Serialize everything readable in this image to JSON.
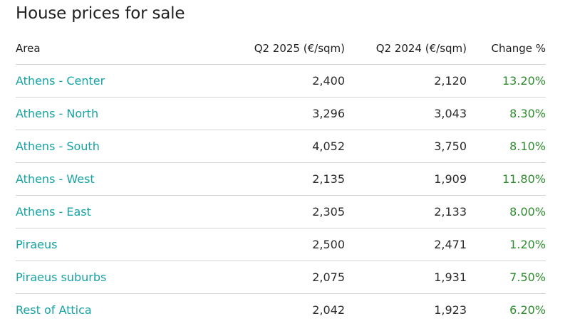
{
  "title": "House prices for sale",
  "columns": {
    "area": "Area",
    "q2_2025": "Q2 2025 (€/sqm)",
    "q2_2024": "Q2 2024 (€/sqm)",
    "change": "Change %"
  },
  "colors": {
    "area_link": "#17a2a3",
    "positive_change": "#2e8b2e",
    "text": "#2a2a2a",
    "divider": "#d4d4d4"
  },
  "rows": [
    {
      "area": "Athens - Center",
      "q2_2025": "2,400",
      "q2_2024": "2,120",
      "change": "13.20%"
    },
    {
      "area": "Athens - North",
      "q2_2025": "3,296",
      "q2_2024": "3,043",
      "change": "8.30%"
    },
    {
      "area": "Athens - South",
      "q2_2025": "4,052",
      "q2_2024": "3,750",
      "change": "8.10%"
    },
    {
      "area": "Athens - West",
      "q2_2025": "2,135",
      "q2_2024": "1,909",
      "change": "11.80%"
    },
    {
      "area": "Athens - East",
      "q2_2025": "2,305",
      "q2_2024": "2,133",
      "change": "8.00%"
    },
    {
      "area": "Piraeus",
      "q2_2025": "2,500",
      "q2_2024": "2,471",
      "change": "1.20%"
    },
    {
      "area": "Piraeus suburbs",
      "q2_2025": "2,075",
      "q2_2024": "1,931",
      "change": "7.50%"
    },
    {
      "area": "Rest of Attica",
      "q2_2025": "2,042",
      "q2_2024": "1,923",
      "change": "6.20%"
    }
  ]
}
